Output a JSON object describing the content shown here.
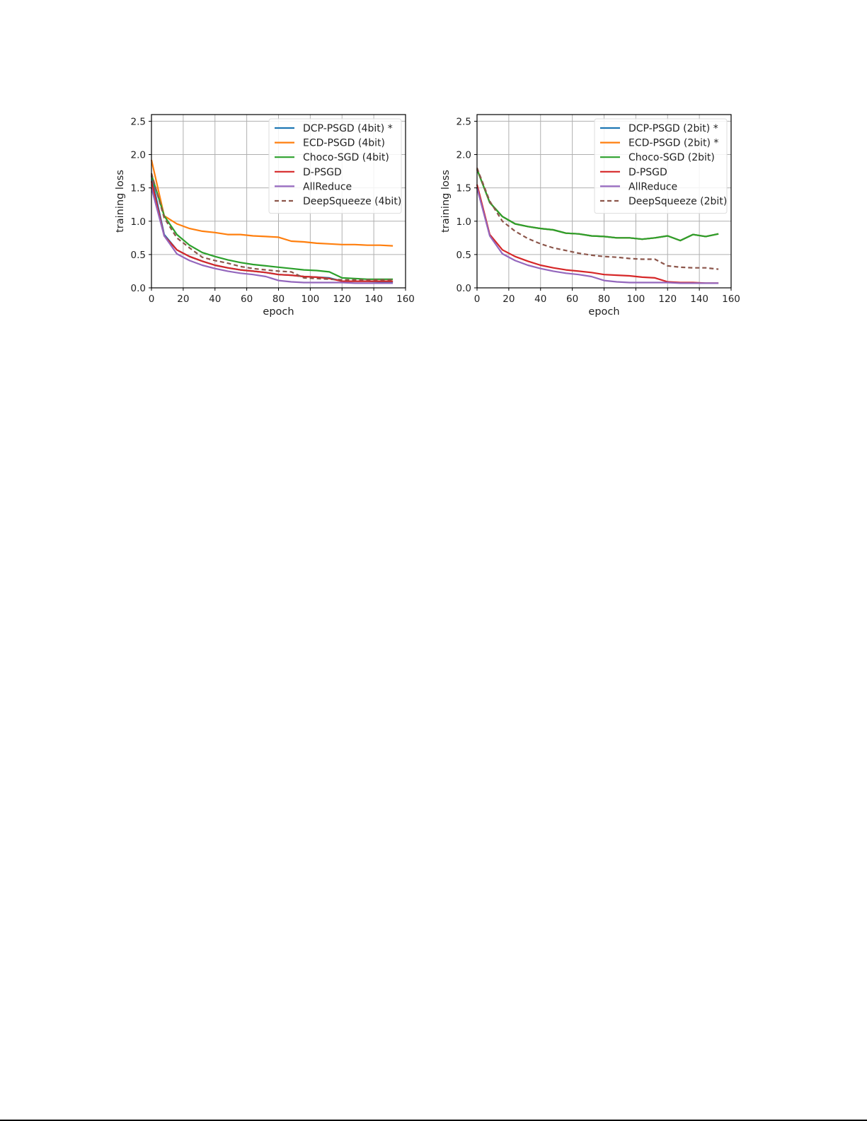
{
  "chart_data": [
    {
      "type": "line",
      "xlabel": "epoch",
      "ylabel": "training loss",
      "xlim": [
        0,
        160
      ],
      "ylim": [
        0,
        2.6
      ],
      "xticks": [
        "0",
        "20",
        "40",
        "60",
        "80",
        "100",
        "120",
        "140",
        "160"
      ],
      "yticks": [
        "0.0",
        "0.5",
        "1.0",
        "1.5",
        "2.0",
        "2.5"
      ],
      "grid": true,
      "legend_position": "top-right",
      "series": [
        {
          "name": "DCP-PSGD (4bit) *",
          "color": "#1f77b4",
          "dash": "solid",
          "x": [
            0,
            8,
            16,
            24,
            32,
            40,
            48,
            56,
            64,
            72,
            80,
            88,
            96,
            104,
            112,
            120,
            128,
            136,
            144,
            152
          ],
          "y": [
            1.68,
            0.8,
            0.57,
            0.47,
            0.4,
            0.34,
            0.3,
            0.27,
            0.25,
            0.23,
            0.2,
            0.19,
            0.17,
            0.16,
            0.15,
            0.1,
            0.1,
            0.1,
            0.09,
            0.09
          ]
        },
        {
          "name": "ECD-PSGD (4bit)",
          "color": "#ff7f0e",
          "dash": "solid",
          "x": [
            0,
            8,
            16,
            24,
            32,
            40,
            48,
            56,
            64,
            72,
            80,
            88,
            96,
            104,
            112,
            120,
            128,
            136,
            144,
            152
          ],
          "y": [
            1.92,
            1.08,
            0.96,
            0.89,
            0.85,
            0.83,
            0.8,
            0.8,
            0.78,
            0.77,
            0.76,
            0.7,
            0.69,
            0.67,
            0.66,
            0.65,
            0.65,
            0.64,
            0.64,
            0.63
          ]
        },
        {
          "name": "Choco-SGD (4bit)",
          "color": "#2ca02c",
          "dash": "solid",
          "x": [
            0,
            8,
            16,
            24,
            32,
            40,
            48,
            56,
            64,
            72,
            80,
            88,
            96,
            104,
            112,
            120,
            128,
            136,
            144,
            152
          ],
          "y": [
            1.7,
            1.08,
            0.8,
            0.64,
            0.53,
            0.47,
            0.42,
            0.38,
            0.35,
            0.33,
            0.31,
            0.29,
            0.27,
            0.26,
            0.24,
            0.15,
            0.14,
            0.13,
            0.13,
            0.13
          ]
        },
        {
          "name": "D-PSGD",
          "color": "#d62728",
          "dash": "solid",
          "x": [
            0,
            8,
            16,
            24,
            32,
            40,
            48,
            56,
            64,
            72,
            80,
            88,
            96,
            104,
            112,
            120,
            128,
            136,
            144,
            152
          ],
          "y": [
            1.6,
            0.78,
            0.57,
            0.47,
            0.4,
            0.34,
            0.3,
            0.27,
            0.25,
            0.23,
            0.2,
            0.19,
            0.17,
            0.16,
            0.14,
            0.1,
            0.1,
            0.1,
            0.1,
            0.1
          ]
        },
        {
          "name": "AllReduce",
          "color": "#9467bd",
          "dash": "solid",
          "x": [
            0,
            8,
            16,
            24,
            32,
            40,
            48,
            56,
            64,
            72,
            80,
            88,
            96,
            104,
            112,
            120,
            128,
            136,
            144,
            152
          ],
          "y": [
            1.5,
            0.78,
            0.51,
            0.41,
            0.34,
            0.29,
            0.25,
            0.22,
            0.2,
            0.17,
            0.11,
            0.09,
            0.08,
            0.08,
            0.08,
            0.08,
            0.07,
            0.07,
            0.07,
            0.07
          ]
        },
        {
          "name": "DeepSqueeze (4bit)",
          "color": "#8c564b",
          "dash": "dashed",
          "x": [
            0,
            8,
            16,
            24,
            32,
            40,
            48,
            56,
            64,
            72,
            80,
            88,
            96,
            104,
            112,
            120,
            128,
            136,
            144,
            152
          ],
          "y": [
            1.72,
            1.05,
            0.75,
            0.6,
            0.46,
            0.41,
            0.37,
            0.32,
            0.29,
            0.27,
            0.25,
            0.24,
            0.15,
            0.14,
            0.13,
            0.12,
            0.12,
            0.12,
            0.12,
            0.12
          ]
        }
      ]
    },
    {
      "type": "line",
      "xlabel": "epoch",
      "ylabel": "training loss",
      "xlim": [
        0,
        160
      ],
      "ylim": [
        0,
        2.6
      ],
      "xticks": [
        "0",
        "20",
        "40",
        "60",
        "80",
        "100",
        "120",
        "140",
        "160"
      ],
      "yticks": [
        "0.0",
        "0.5",
        "1.0",
        "1.5",
        "2.0",
        "2.5"
      ],
      "grid": true,
      "legend_position": "top-right",
      "series": [
        {
          "name": "DCP-PSGD (2bit) *",
          "color": "#1f77b4",
          "dash": "solid",
          "x": [
            0,
            8,
            16,
            24,
            32,
            40,
            48,
            56,
            64,
            72,
            80,
            88,
            96,
            104,
            112,
            120,
            128,
            136,
            144,
            152
          ],
          "y": [
            1.78,
            1.28,
            1.07,
            0.96,
            0.92,
            0.89,
            0.87,
            0.82,
            0.81,
            0.78,
            0.77,
            0.75,
            0.75,
            0.73,
            0.75,
            0.78,
            0.71,
            0.8,
            0.77,
            0.81
          ]
        },
        {
          "name": "ECD-PSGD (2bit) *",
          "color": "#ff7f0e",
          "dash": "solid",
          "x": [
            0,
            8,
            16,
            24,
            32,
            40,
            48,
            56,
            64,
            72,
            80,
            88,
            96,
            104,
            112,
            120,
            128,
            136,
            144,
            152
          ],
          "y": [
            1.78,
            1.28,
            1.07,
            0.96,
            0.92,
            0.89,
            0.87,
            0.82,
            0.81,
            0.78,
            0.77,
            0.75,
            0.75,
            0.73,
            0.75,
            0.78,
            0.71,
            0.8,
            0.77,
            0.81
          ]
        },
        {
          "name": "Choco-SGD (2bit)",
          "color": "#2ca02c",
          "dash": "solid",
          "x": [
            0,
            8,
            16,
            24,
            32,
            40,
            48,
            56,
            64,
            72,
            80,
            88,
            96,
            104,
            112,
            120,
            128,
            136,
            144,
            152
          ],
          "y": [
            1.78,
            1.28,
            1.07,
            0.96,
            0.92,
            0.89,
            0.87,
            0.82,
            0.81,
            0.78,
            0.77,
            0.75,
            0.75,
            0.73,
            0.75,
            0.78,
            0.71,
            0.8,
            0.77,
            0.81
          ]
        },
        {
          "name": "D-PSGD",
          "color": "#d62728",
          "dash": "solid",
          "x": [
            0,
            8,
            16,
            24,
            32,
            40,
            48,
            56,
            64,
            72,
            80,
            88,
            96,
            104,
            112,
            120,
            128,
            136,
            144,
            152
          ],
          "y": [
            1.55,
            0.8,
            0.57,
            0.47,
            0.4,
            0.34,
            0.3,
            0.27,
            0.25,
            0.23,
            0.2,
            0.19,
            0.18,
            0.16,
            0.15,
            0.09,
            0.08,
            0.08,
            0.07,
            0.07
          ]
        },
        {
          "name": "AllReduce",
          "color": "#9467bd",
          "dash": "solid",
          "x": [
            0,
            8,
            16,
            24,
            32,
            40,
            48,
            56,
            64,
            72,
            80,
            88,
            96,
            104,
            112,
            120,
            128,
            136,
            144,
            152
          ],
          "y": [
            1.5,
            0.78,
            0.51,
            0.41,
            0.34,
            0.29,
            0.25,
            0.22,
            0.2,
            0.17,
            0.11,
            0.09,
            0.08,
            0.08,
            0.08,
            0.08,
            0.07,
            0.07,
            0.07,
            0.07
          ]
        },
        {
          "name": "DeepSqueeze (2bit)",
          "color": "#8c564b",
          "dash": "dashed",
          "x": [
            0,
            8,
            16,
            24,
            32,
            40,
            48,
            56,
            64,
            72,
            80,
            88,
            96,
            104,
            112,
            120,
            128,
            136,
            144,
            152
          ],
          "y": [
            1.8,
            1.3,
            1.0,
            0.85,
            0.74,
            0.66,
            0.6,
            0.56,
            0.52,
            0.49,
            0.47,
            0.46,
            0.44,
            0.43,
            0.43,
            0.33,
            0.31,
            0.3,
            0.3,
            0.28
          ]
        }
      ]
    }
  ]
}
